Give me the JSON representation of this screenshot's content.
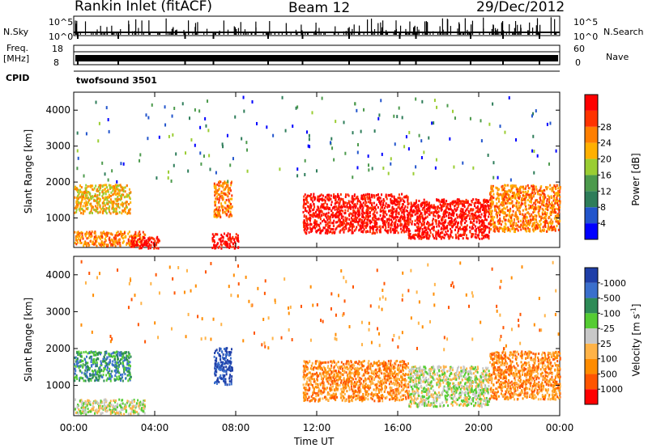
{
  "header": {
    "station": "Rankin Inlet (fitACF)",
    "beam": "Beam 12",
    "date": "29/Dec/2012"
  },
  "strip_labels": {
    "nsky": "N.Sky",
    "nsky_top": "10^5",
    "nsky_bottom": "10^0",
    "nsearch": "N.Search",
    "nsearch_top": "10^5",
    "nsearch_bottom": "10^0",
    "freq": "Freq.",
    "freq_unit": "[MHz]",
    "freq_top": "18",
    "freq_bottom": "8",
    "nave": "Nave",
    "nave_top": "60",
    "nave_bottom": "0",
    "cpid": "CPID",
    "cpid_value": "twofsound 3501"
  },
  "chart_data": [
    {
      "type": "heatmap",
      "panel": "power",
      "ylabel": "Slant Range [km]",
      "xlabel": "",
      "yticks": [
        1000,
        2000,
        3000,
        4000
      ],
      "ylim": [
        180,
        4500
      ],
      "xlim_hours": [
        0,
        24
      ],
      "colorbar": {
        "label": "Power [dB]",
        "ticks": [
          "4",
          "8",
          "12",
          "16",
          "20",
          "24",
          "28"
        ],
        "colors": [
          "#0000ff",
          "#2255cc",
          "#2e7d5a",
          "#4c9a4c",
          "#9acd32",
          "#ffb000",
          "#ff7f00",
          "#ff3300",
          "#ff0000"
        ]
      },
      "bands": [
        {
          "t0": 0.0,
          "t1": 2.8,
          "r0": 1150,
          "r1": 1950,
          "level": 5
        },
        {
          "t0": 0.0,
          "t1": 3.5,
          "r0": 250,
          "r1": 650,
          "level": 6
        },
        {
          "t0": 2.8,
          "t1": 4.2,
          "r0": 180,
          "r1": 500,
          "level": 8
        },
        {
          "t0": 6.9,
          "t1": 7.8,
          "r0": 1050,
          "r1": 2050,
          "level": 6
        },
        {
          "t0": 6.8,
          "t1": 8.1,
          "r0": 180,
          "r1": 600,
          "level": 8
        },
        {
          "t0": 11.3,
          "t1": 16.5,
          "r0": 600,
          "r1": 1700,
          "level": 8
        },
        {
          "t0": 16.5,
          "t1": 20.5,
          "r0": 450,
          "r1": 1550,
          "level": 8
        },
        {
          "t0": 20.5,
          "t1": 24.0,
          "r0": 650,
          "r1": 1950,
          "level": 6
        }
      ]
    },
    {
      "type": "heatmap",
      "panel": "velocity",
      "ylabel": "Slant Range [km]",
      "xlabel": "Time UT",
      "xticks": [
        "00:00",
        "04:00",
        "08:00",
        "12:00",
        "16:00",
        "20:00",
        "00:00"
      ],
      "yticks": [
        1000,
        2000,
        3000,
        4000
      ],
      "ylim": [
        180,
        4500
      ],
      "xlim_hours": [
        0,
        24
      ],
      "colorbar": {
        "label": "Velocity [m s^-1]",
        "ticks": [
          "1000",
          "500",
          "100",
          "25",
          "-25",
          "-100",
          "-500",
          "-1000"
        ],
        "colors": [
          "#1f3fa8",
          "#3a6fcc",
          "#2e8b57",
          "#55cc33",
          "#c8c8c8",
          "#ffb347",
          "#ff8c00",
          "#ff5500",
          "#ff0000"
        ]
      },
      "bands": [
        {
          "t0": 0.0,
          "t1": 2.8,
          "r0": 1150,
          "r1": 1950,
          "level": 2
        },
        {
          "t0": 0.0,
          "t1": 3.5,
          "r0": 250,
          "r1": 650,
          "level": 4
        },
        {
          "t0": 6.9,
          "t1": 7.8,
          "r0": 1050,
          "r1": 2050,
          "level": 0
        },
        {
          "t0": 11.3,
          "t1": 16.5,
          "r0": 600,
          "r1": 1700,
          "level": 6
        },
        {
          "t0": 16.5,
          "t1": 20.5,
          "r0": 450,
          "r1": 1550,
          "level": 4
        },
        {
          "t0": 20.5,
          "t1": 24.0,
          "r0": 650,
          "r1": 1950,
          "level": 6
        }
      ]
    }
  ]
}
